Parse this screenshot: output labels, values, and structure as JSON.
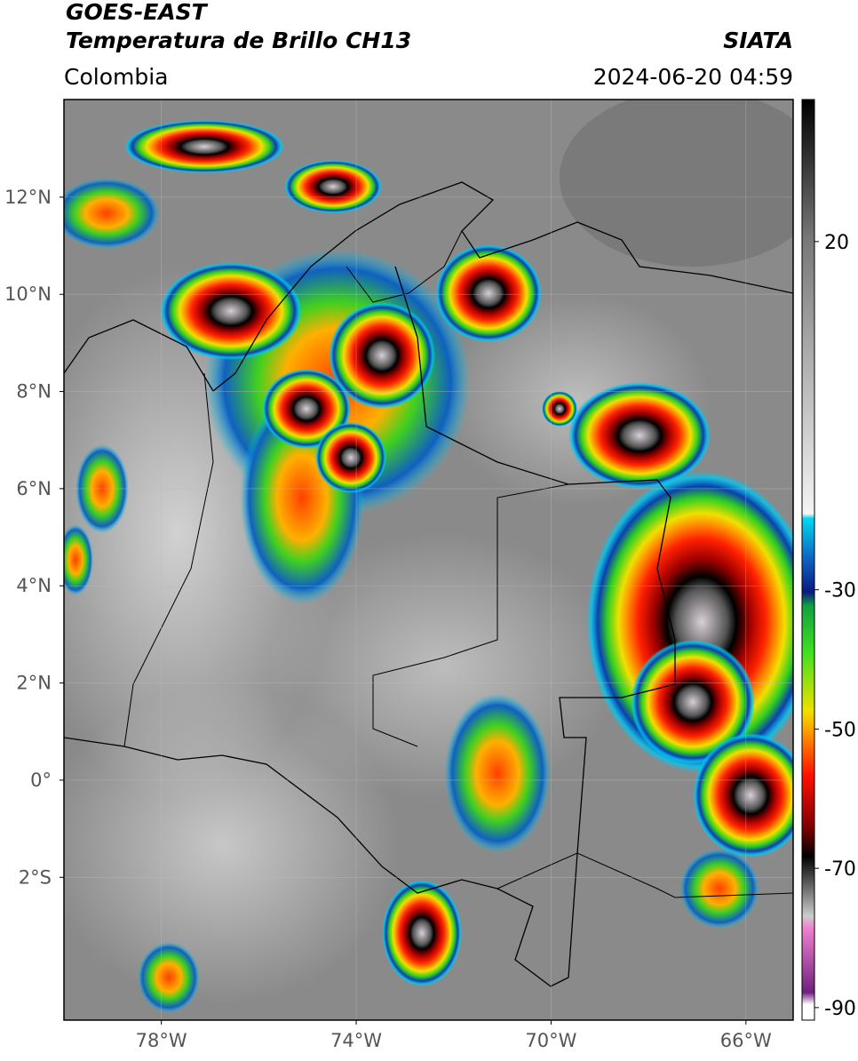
{
  "header": {
    "title": "GOES-EAST",
    "subtitle": "Temperatura de Brillo CH13",
    "region": "Colombia",
    "source": "SIATA",
    "datetime": "2024-06-20 04:59"
  },
  "map": {
    "lonlim": [
      -80,
      -65.03
    ],
    "latlim": [
      -4.94,
      14.01
    ],
    "lonticks": [
      {
        "value": -78,
        "label": "78°W"
      },
      {
        "value": -74,
        "label": "74°W"
      },
      {
        "value": -70,
        "label": "70°W"
      },
      {
        "value": -66,
        "label": "66°W"
      }
    ],
    "latticks": [
      {
        "value": 12,
        "label": "12°N"
      },
      {
        "value": 10,
        "label": "10°N"
      },
      {
        "value": 8,
        "label": "8°N"
      },
      {
        "value": 6,
        "label": "6°N"
      },
      {
        "value": 4,
        "label": "4°N"
      },
      {
        "value": 2,
        "label": "2°N"
      },
      {
        "value": 0,
        "label": "0°"
      },
      {
        "value": -2,
        "label": "2°S"
      }
    ],
    "grid": true
  },
  "colorbar": {
    "lim": [
      -91.8,
      40.4
    ],
    "ticks": [
      20,
      -30,
      -50,
      -70,
      -90
    ]
  }
}
